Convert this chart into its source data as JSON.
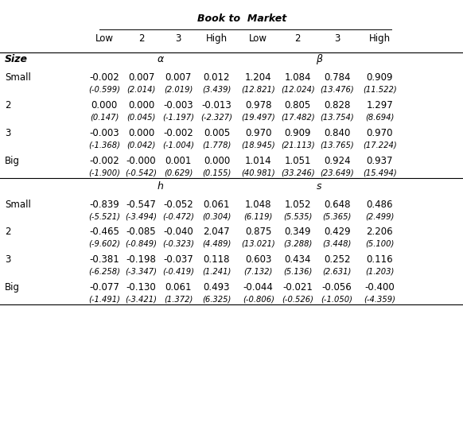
{
  "title_btm": "Book to  Market",
  "col_headers": [
    "Low",
    "2",
    "3",
    "High",
    "Low",
    "2",
    "3",
    "High"
  ],
  "size_label": "Size",
  "section1_label_left": "α",
  "section1_label_right": "β",
  "section2_label_left": "h",
  "section2_label_right": "s",
  "row_labels": [
    "Small",
    "2",
    "3",
    "Big"
  ],
  "alpha_data": [
    [
      "-0.002",
      "0.007",
      "0.007",
      "0.012",
      "1.204",
      "1.084",
      "0.784",
      "0.909"
    ],
    [
      "0.000",
      "0.000",
      "-0.003",
      "-0.013",
      "0.978",
      "0.805",
      "0.828",
      "1.297"
    ],
    [
      "-0.003",
      "0.000",
      "-0.002",
      "0.005",
      "0.970",
      "0.909",
      "0.840",
      "0.970"
    ],
    [
      "-0.002",
      "-0.000",
      "0.001",
      "0.000",
      "1.014",
      "1.051",
      "0.924",
      "0.937"
    ]
  ],
  "alpha_tstat": [
    [
      "(-0.599)",
      "(2.014)",
      "(2.019)",
      "(3.439)",
      "(12.821)",
      "(12.024)",
      "(13.476)",
      "(11.522)"
    ],
    [
      "(0.147)",
      "(0.045)",
      "(-1.197)",
      "(-2.327)",
      "(19.497)",
      "(17.482)",
      "(13.754)",
      "(8.694)"
    ],
    [
      "(-1.368)",
      "(0.042)",
      "(-1.004)",
      "(1.778)",
      "(18.945)",
      "(21.113)",
      "(13.765)",
      "(17.224)"
    ],
    [
      "(-1.900)",
      "(-0.542)",
      "(0.629)",
      "(0.155)",
      "(40.981)",
      "(33.246)",
      "(23.649)",
      "(15.494)"
    ]
  ],
  "hs_data": [
    [
      "-0.839",
      "-0.547",
      "-0.052",
      "0.061",
      "1.048",
      "1.052",
      "0.648",
      "0.486"
    ],
    [
      "-0.465",
      "-0.085",
      "-0.040",
      "2.047",
      "0.875",
      "0.349",
      "0.429",
      "2.206"
    ],
    [
      "-0.381",
      "-0.198",
      "-0.037",
      "0.118",
      "0.603",
      "0.434",
      "0.252",
      "0.116"
    ],
    [
      "-0.077",
      "-0.130",
      "0.061",
      "0.493",
      "-0.044",
      "-0.021",
      "-0.056",
      "-0.400"
    ]
  ],
  "hs_tstat": [
    [
      "(-5.521)",
      "(-3.494)",
      "(-0.472)",
      "(0.304)",
      "(6.119)",
      "(5.535)",
      "(5.365)",
      "(2.499)"
    ],
    [
      "(-9.602)",
      "(-0.849)",
      "(-0.323)",
      "(4.489)",
      "(13.021)",
      "(3.288)",
      "(3.448)",
      "(5.100)"
    ],
    [
      "(-6.258)",
      "(-3.347)",
      "(-0.419)",
      "(1.241)",
      "(7.132)",
      "(5.136)",
      "(2.631)",
      "(1.203)"
    ],
    [
      "(-1.491)",
      "(-3.421)",
      "(1.372)",
      "(6.325)",
      "(-0.806)",
      "(-0.526)",
      "(-1.050)",
      "(-4.359)"
    ]
  ],
  "bg_color": "#ffffff",
  "text_color": "#000000",
  "line_color": "#000000"
}
